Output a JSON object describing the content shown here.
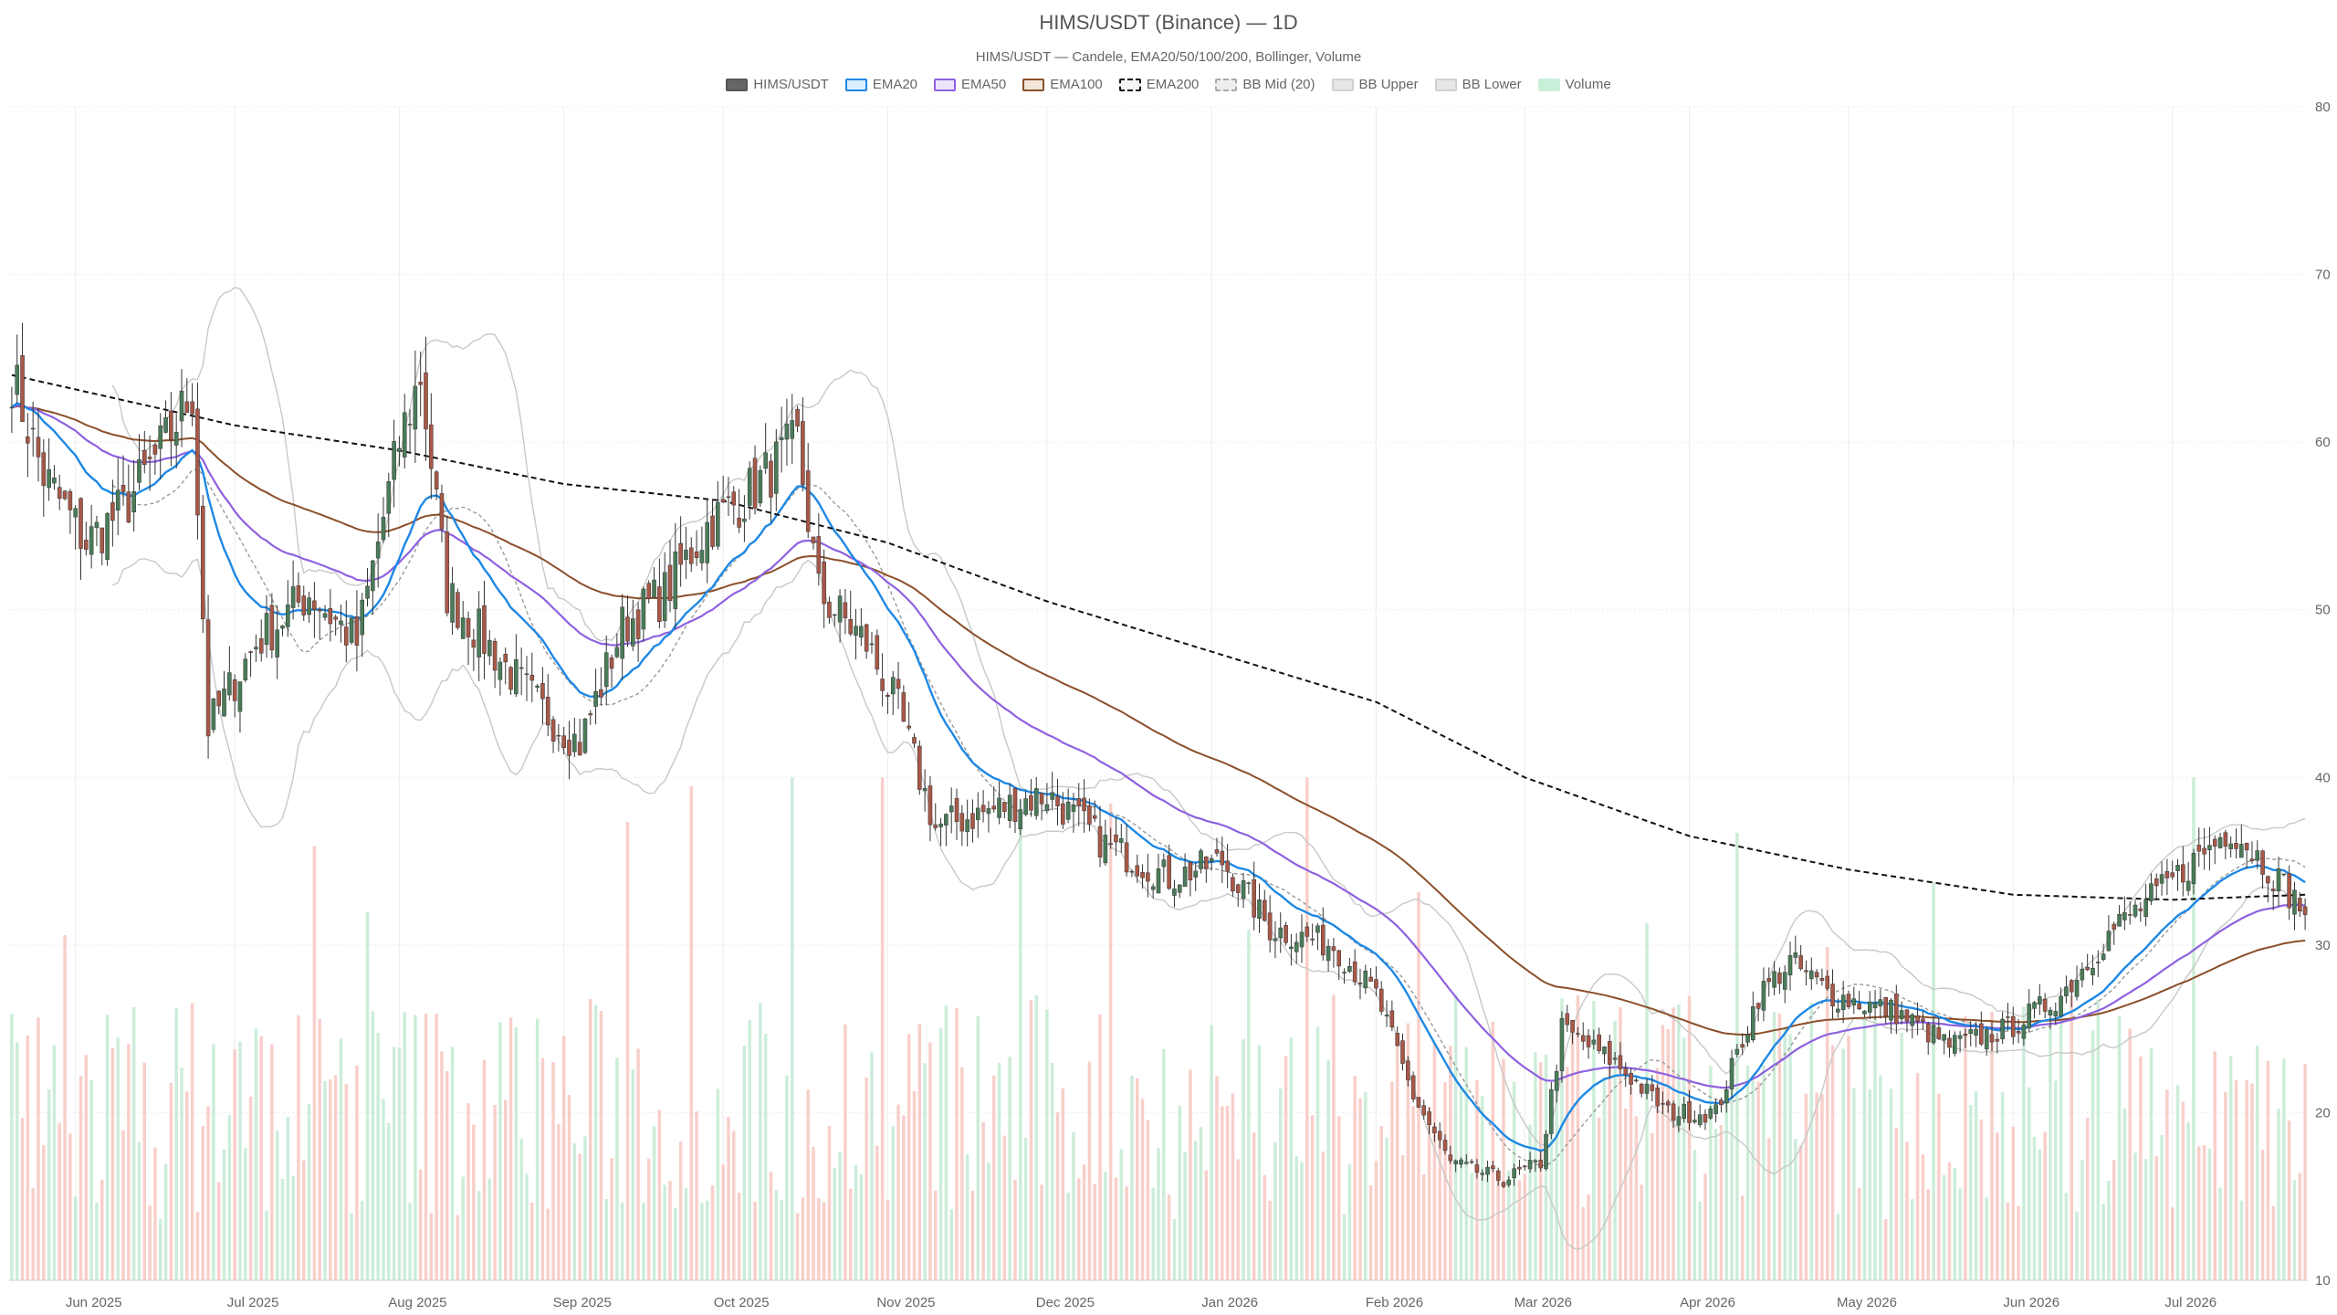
{
  "title": "HIMS/USDT (Binance) — 1D",
  "subtitle": "HIMS/USDT — Candele, EMA20/50/100/200, Bollinger, Volume",
  "legend": [
    {
      "name": "HIMS/USDT",
      "fill": "#666666",
      "stroke": "#555555",
      "dash": ""
    },
    {
      "name": "EMA20",
      "fill": "#dbeefe",
      "stroke": "#1e88e5",
      "dash": ""
    },
    {
      "name": "EMA50",
      "fill": "#ede5fb",
      "stroke": "#8e61e0",
      "dash": ""
    },
    {
      "name": "EMA100",
      "fill": "#f2e6dc",
      "stroke": "#8b4f2a",
      "dash": ""
    },
    {
      "name": "EMA200",
      "fill": "#f5f5f5",
      "stroke": "#111111",
      "dash": "4 3"
    },
    {
      "name": "BB Mid (20)",
      "fill": "#eeeeee",
      "stroke": "#aaaaaa",
      "dash": "3 3"
    },
    {
      "name": "BB Upper",
      "fill": "#e6e6e6",
      "stroke": "#d0d0d0",
      "dash": ""
    },
    {
      "name": "BB Lower",
      "fill": "#e6e6e6",
      "stroke": "#d0d0d0",
      "dash": ""
    },
    {
      "name": "Volume",
      "fill": "#c8efd8",
      "stroke": "#c8efd8",
      "dash": ""
    }
  ],
  "colors": {
    "up": "#4a7c59",
    "down": "#a85848",
    "wick": "#333333",
    "ema20": "#1e88e5",
    "ema50": "#8e61e0",
    "ema100": "#8b4f2a",
    "ema200": "#111111",
    "bb": "#c8c8c8",
    "bbmid": "#999999",
    "volUp": "#bfe9cf",
    "volDown": "#f6c3bd",
    "grid": "#ececec"
  },
  "chart_data": {
    "type": "candlestick",
    "ylim": [
      10,
      80
    ],
    "yticks": [
      10,
      20,
      30,
      40,
      50,
      60,
      70,
      80
    ],
    "x_start": "2025-05-20",
    "x_end": "2026-07-26",
    "x_ticks": [
      {
        "date": "2025-06-01",
        "label": "Jun 2025"
      },
      {
        "date": "2025-07-01",
        "label": "Jul 2025"
      },
      {
        "date": "2025-08-01",
        "label": "Aug 2025"
      },
      {
        "date": "2025-09-01",
        "label": "Sep 2025"
      },
      {
        "date": "2025-10-01",
        "label": "Oct 2025"
      },
      {
        "date": "2025-11-01",
        "label": "Nov 2025"
      },
      {
        "date": "2025-12-01",
        "label": "Dec 2025"
      },
      {
        "date": "2026-01-01",
        "label": "Jan 2026"
      },
      {
        "date": "2026-02-01",
        "label": "Feb 2026"
      },
      {
        "date": "2026-03-01",
        "label": "Mar 2026"
      },
      {
        "date": "2026-04-01",
        "label": "Apr 2026"
      },
      {
        "date": "2026-05-01",
        "label": "May 2026"
      },
      {
        "date": "2026-06-01",
        "label": "Jun 2026"
      },
      {
        "date": "2026-07-01",
        "label": "Jul 2026"
      }
    ],
    "close_anchors": [
      {
        "date": "2025-05-20",
        "value": 64
      },
      {
        "date": "2025-05-26",
        "value": 58
      },
      {
        "date": "2025-06-03",
        "value": 54
      },
      {
        "date": "2025-06-10",
        "value": 56
      },
      {
        "date": "2025-06-18",
        "value": 60
      },
      {
        "date": "2025-06-23",
        "value": 63
      },
      {
        "date": "2025-06-26",
        "value": 43
      },
      {
        "date": "2025-07-05",
        "value": 48
      },
      {
        "date": "2025-07-15",
        "value": 51
      },
      {
        "date": "2025-07-24",
        "value": 48
      },
      {
        "date": "2025-08-01",
        "value": 60
      },
      {
        "date": "2025-08-05",
        "value": 64
      },
      {
        "date": "2025-08-10",
        "value": 51
      },
      {
        "date": "2025-08-20",
        "value": 47
      },
      {
        "date": "2025-08-28",
        "value": 44
      },
      {
        "date": "2025-09-04",
        "value": 42
      },
      {
        "date": "2025-09-12",
        "value": 49
      },
      {
        "date": "2025-09-20",
        "value": 51
      },
      {
        "date": "2025-09-28",
        "value": 55
      },
      {
        "date": "2025-10-06",
        "value": 57
      },
      {
        "date": "2025-10-15",
        "value": 60
      },
      {
        "date": "2025-10-19",
        "value": 51
      },
      {
        "date": "2025-10-28",
        "value": 48
      },
      {
        "date": "2025-11-03",
        "value": 44
      },
      {
        "date": "2025-11-10",
        "value": 37
      },
      {
        "date": "2025-11-20",
        "value": 38
      },
      {
        "date": "2025-12-01",
        "value": 39
      },
      {
        "date": "2025-12-12",
        "value": 36
      },
      {
        "date": "2025-12-24",
        "value": 34
      },
      {
        "date": "2026-01-03",
        "value": 35
      },
      {
        "date": "2026-01-12",
        "value": 31
      },
      {
        "date": "2026-01-24",
        "value": 30
      },
      {
        "date": "2026-02-01",
        "value": 27
      },
      {
        "date": "2026-02-08",
        "value": 21
      },
      {
        "date": "2026-02-15",
        "value": 17
      },
      {
        "date": "2026-02-25",
        "value": 16
      },
      {
        "date": "2026-03-04",
        "value": 17
      },
      {
        "date": "2026-03-08",
        "value": 25
      },
      {
        "date": "2026-03-18",
        "value": 23
      },
      {
        "date": "2026-03-28",
        "value": 20
      },
      {
        "date": "2026-04-06",
        "value": 20
      },
      {
        "date": "2026-04-14",
        "value": 27
      },
      {
        "date": "2026-04-20",
        "value": 29
      },
      {
        "date": "2026-04-28",
        "value": 27
      },
      {
        "date": "2026-05-10",
        "value": 26
      },
      {
        "date": "2026-05-20",
        "value": 24
      },
      {
        "date": "2026-05-31",
        "value": 25
      },
      {
        "date": "2026-06-10",
        "value": 27
      },
      {
        "date": "2026-06-20",
        "value": 31
      },
      {
        "date": "2026-06-28",
        "value": 33
      },
      {
        "date": "2026-07-05",
        "value": 35
      },
      {
        "date": "2026-07-12",
        "value": 37
      },
      {
        "date": "2026-07-18",
        "value": 35
      },
      {
        "date": "2026-07-26",
        "value": 32
      }
    ],
    "ema200_anchors": [
      {
        "date": "2025-05-20",
        "value": 64
      },
      {
        "date": "2025-07-01",
        "value": 61
      },
      {
        "date": "2025-08-01",
        "value": 59.5
      },
      {
        "date": "2025-09-01",
        "value": 57.5
      },
      {
        "date": "2025-10-01",
        "value": 56.5
      },
      {
        "date": "2025-11-01",
        "value": 54
      },
      {
        "date": "2025-12-01",
        "value": 50.5
      },
      {
        "date": "2026-01-01",
        "value": 47.5
      },
      {
        "date": "2026-02-01",
        "value": 44.5
      },
      {
        "date": "2026-03-01",
        "value": 40
      },
      {
        "date": "2026-04-01",
        "value": 36.5
      },
      {
        "date": "2026-05-01",
        "value": 34.5
      },
      {
        "date": "2026-06-01",
        "value": 33
      },
      {
        "date": "2026-07-01",
        "value": 32.7
      },
      {
        "date": "2026-07-26",
        "value": 33
      }
    ],
    "volume_scale_max": 100
  }
}
